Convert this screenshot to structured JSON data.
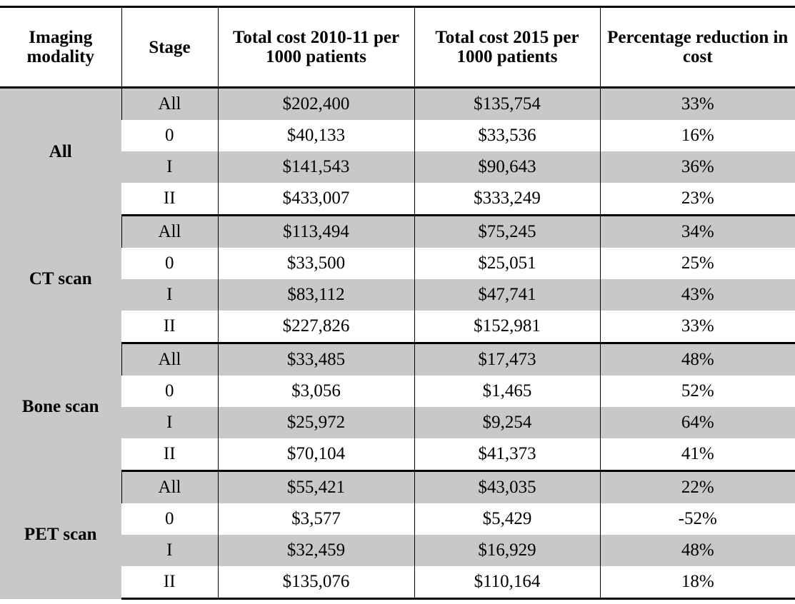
{
  "table": {
    "header": [
      "Imaging modality",
      "Stage",
      "Total cost 2010-11 per 1000 patients",
      "Total cost 2015 per 1000 patients",
      "Percentage reduction in cost"
    ],
    "groups": [
      {
        "modality": "All",
        "rows": [
          [
            "All",
            "$202,400",
            "$135,754",
            "33%"
          ],
          [
            "0",
            "$40,133",
            "$33,536",
            "16%"
          ],
          [
            "I",
            "$141,543",
            "$90,643",
            "36%"
          ],
          [
            "II",
            "$433,007",
            "$333,249",
            "23%"
          ]
        ]
      },
      {
        "modality": "CT scan",
        "rows": [
          [
            "All",
            "$113,494",
            "$75,245",
            "34%"
          ],
          [
            "0",
            "$33,500",
            "$25,051",
            "25%"
          ],
          [
            "I",
            "$83,112",
            "$47,741",
            "43%"
          ],
          [
            "II",
            "$227,826",
            "$152,981",
            "33%"
          ]
        ]
      },
      {
        "modality": "Bone scan",
        "rows": [
          [
            "All",
            "$33,485",
            "$17,473",
            "48%"
          ],
          [
            "0",
            "$3,056",
            "$1,465",
            "52%"
          ],
          [
            "I",
            "$25,972",
            "$9,254",
            "64%"
          ],
          [
            "II",
            "$70,104",
            "$41,373",
            "41%"
          ]
        ]
      },
      {
        "modality": "PET scan",
        "rows": [
          [
            "All",
            "$55,421",
            "$43,035",
            "22%"
          ],
          [
            "0",
            "$3,577",
            "$5,429",
            "-52%"
          ],
          [
            "I",
            "$32,459",
            "$16,929",
            "48%"
          ],
          [
            "II",
            "$135,076",
            "$110,164",
            "18%"
          ]
        ]
      }
    ]
  }
}
